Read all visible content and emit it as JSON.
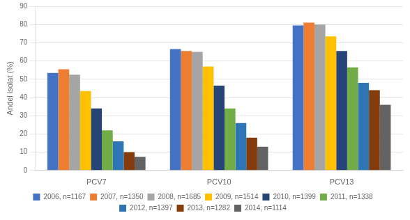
{
  "chart_data": {
    "type": "bar",
    "categories": [
      "PCV7",
      "PCV10",
      "PCV13"
    ],
    "series": [
      {
        "name": "2006, n=1167",
        "color": "#4472C4",
        "values": [
          53.5,
          66.5,
          79.5
        ]
      },
      {
        "name": "2007, n=1350",
        "color": "#ED7D31",
        "values": [
          55.5,
          65.5,
          81.0
        ]
      },
      {
        "name": "2008, n=1685",
        "color": "#A5A5A5",
        "values": [
          52.5,
          65.0,
          80.0
        ]
      },
      {
        "name": "2009, n=1514",
        "color": "#FFC000",
        "values": [
          43.5,
          57.0,
          73.5
        ]
      },
      {
        "name": "2010, n=1399",
        "color": "#264478",
        "values": [
          34.0,
          46.5,
          65.5
        ]
      },
      {
        "name": "2011, n=1338",
        "color": "#70AD47",
        "values": [
          22.0,
          34.0,
          56.5
        ]
      },
      {
        "name": "2012, n=1397",
        "color": "#2E75B6",
        "values": [
          16.0,
          26.0,
          48.0
        ]
      },
      {
        "name": "2013, n=1282",
        "color": "#843C0C",
        "values": [
          10.0,
          18.0,
          44.0
        ]
      },
      {
        "name": "2014, n=1114",
        "color": "#636363",
        "values": [
          7.5,
          13.0,
          36.0
        ]
      }
    ],
    "ylabel": "Andel isolat (%)",
    "ylim": [
      0,
      90
    ],
    "yticks": [
      0,
      10,
      20,
      30,
      40,
      50,
      60,
      70,
      80,
      90
    ],
    "grid": true,
    "legend": "bottom"
  }
}
